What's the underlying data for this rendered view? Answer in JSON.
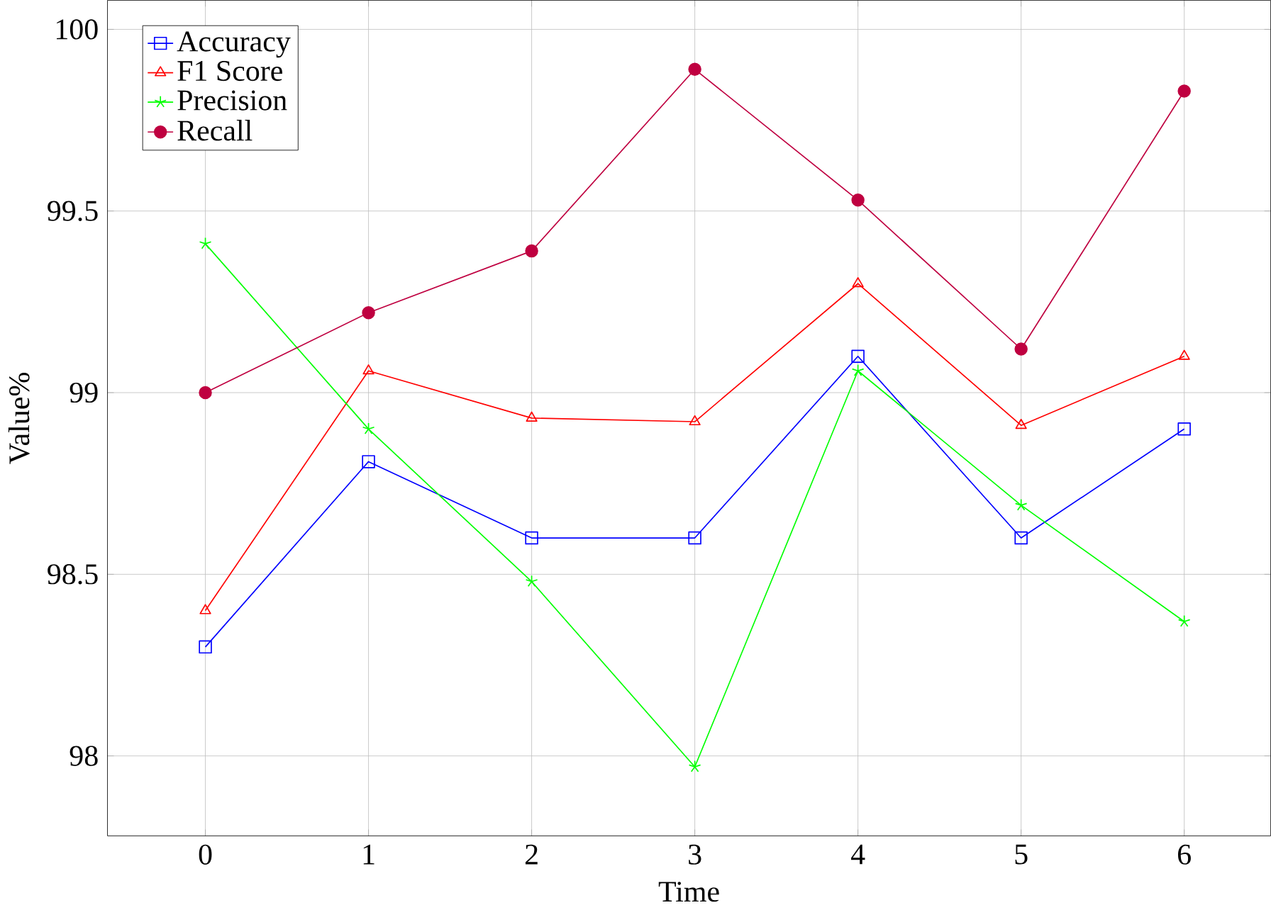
{
  "chart_data": {
    "type": "line",
    "xlabel": "Time",
    "ylabel": "Value%",
    "x": [
      0,
      1,
      2,
      3,
      4,
      5,
      6
    ],
    "series": [
      {
        "name": "Accuracy",
        "color": "#0000ff",
        "marker": "square",
        "values": [
          98.3,
          98.81,
          98.6,
          98.6,
          99.1,
          98.6,
          98.9
        ]
      },
      {
        "name": "F1 Score",
        "color": "#ff0000",
        "marker": "triangle",
        "values": [
          98.4,
          99.06,
          98.93,
          98.92,
          99.3,
          98.91,
          99.1
        ]
      },
      {
        "name": "Precision",
        "color": "#00ff00",
        "marker": "cross",
        "values": [
          99.41,
          98.9,
          98.48,
          97.97,
          99.06,
          98.69,
          98.37
        ]
      },
      {
        "name": "Recall",
        "color": "#bf0040",
        "marker": "circle",
        "values": [
          99.0,
          99.22,
          99.39,
          99.89,
          99.53,
          99.12,
          99.83
        ]
      }
    ],
    "xlim": [
      -0.6,
      6.53
    ],
    "ylim": [
      97.78,
      100.08
    ],
    "xticks": [
      0,
      1,
      2,
      3,
      4,
      5,
      6
    ],
    "yticks": [
      98,
      98.5,
      99,
      99.5,
      100
    ],
    "grid": true,
    "legend": "top left",
    "line_style": "solid"
  }
}
